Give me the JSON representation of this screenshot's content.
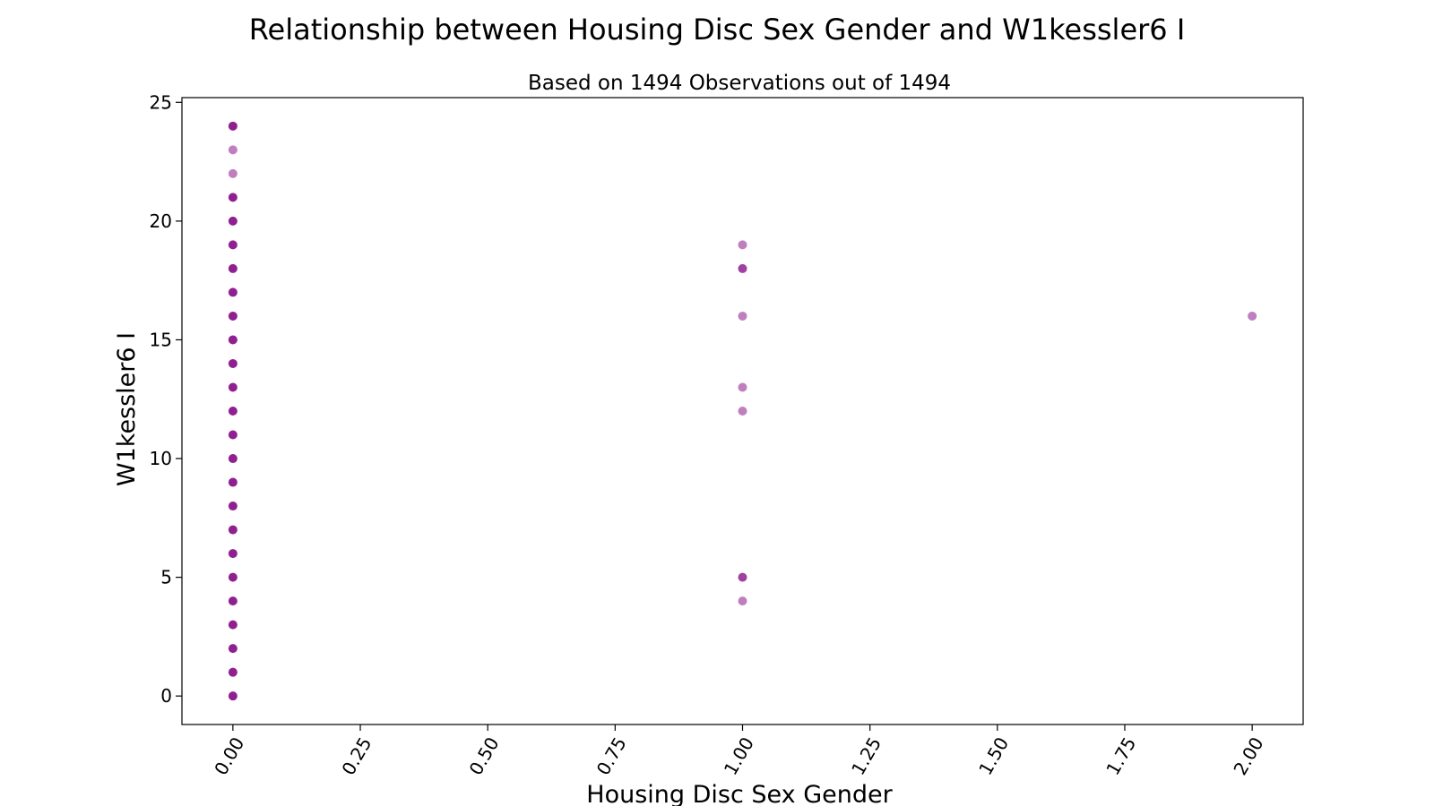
{
  "chart_data": {
    "type": "scatter",
    "title": "Relationship between Housing Disc Sex Gender and W1kessler6 I",
    "subtitle": "Based on 1494 Observations out of 1494",
    "xlabel": "Housing Disc Sex Gender",
    "ylabel": "W1kessler6 I",
    "xlim": [
      -0.1,
      2.1
    ],
    "ylim": [
      -1.2,
      25.2
    ],
    "xticks": [
      "0.00",
      "0.25",
      "0.50",
      "0.75",
      "1.00",
      "1.25",
      "1.50",
      "1.75",
      "2.00"
    ],
    "yticks": [
      "0",
      "5",
      "10",
      "15",
      "20",
      "25"
    ],
    "grid": false,
    "marker_color": "#800080",
    "marker_alpha": 0.5,
    "points": [
      {
        "x": 0,
        "y": 0,
        "n": 3
      },
      {
        "x": 0,
        "y": 1,
        "n": 3
      },
      {
        "x": 0,
        "y": 2,
        "n": 3
      },
      {
        "x": 0,
        "y": 3,
        "n": 3
      },
      {
        "x": 0,
        "y": 4,
        "n": 3
      },
      {
        "x": 0,
        "y": 5,
        "n": 3
      },
      {
        "x": 0,
        "y": 6,
        "n": 3
      },
      {
        "x": 0,
        "y": 7,
        "n": 3
      },
      {
        "x": 0,
        "y": 8,
        "n": 3
      },
      {
        "x": 0,
        "y": 9,
        "n": 3
      },
      {
        "x": 0,
        "y": 10,
        "n": 3
      },
      {
        "x": 0,
        "y": 11,
        "n": 3
      },
      {
        "x": 0,
        "y": 12,
        "n": 3
      },
      {
        "x": 0,
        "y": 13,
        "n": 3
      },
      {
        "x": 0,
        "y": 14,
        "n": 3
      },
      {
        "x": 0,
        "y": 15,
        "n": 3
      },
      {
        "x": 0,
        "y": 16,
        "n": 3
      },
      {
        "x": 0,
        "y": 17,
        "n": 3
      },
      {
        "x": 0,
        "y": 18,
        "n": 3
      },
      {
        "x": 0,
        "y": 19,
        "n": 3
      },
      {
        "x": 0,
        "y": 20,
        "n": 3
      },
      {
        "x": 0,
        "y": 21,
        "n": 3
      },
      {
        "x": 0,
        "y": 22,
        "n": 1
      },
      {
        "x": 0,
        "y": 23,
        "n": 1
      },
      {
        "x": 0,
        "y": 24,
        "n": 3
      },
      {
        "x": 1,
        "y": 4,
        "n": 1
      },
      {
        "x": 1,
        "y": 5,
        "n": 2
      },
      {
        "x": 1,
        "y": 12,
        "n": 1
      },
      {
        "x": 1,
        "y": 13,
        "n": 1
      },
      {
        "x": 1,
        "y": 16,
        "n": 1
      },
      {
        "x": 1,
        "y": 18,
        "n": 2
      },
      {
        "x": 1,
        "y": 19,
        "n": 1
      },
      {
        "x": 2,
        "y": 16,
        "n": 1
      }
    ]
  }
}
